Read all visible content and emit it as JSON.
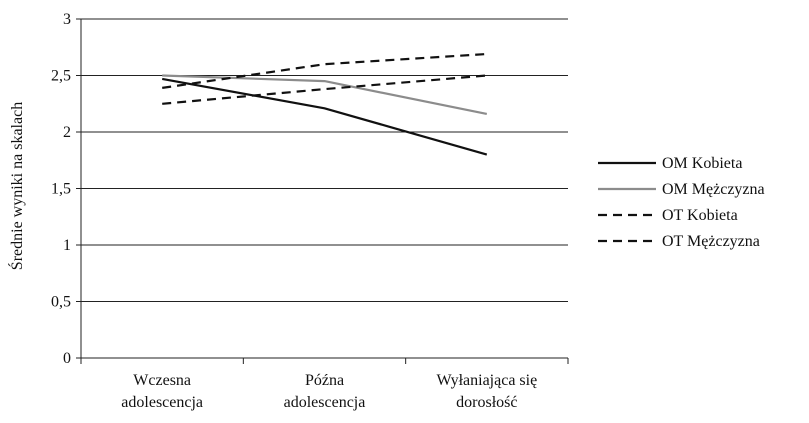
{
  "chart_data": {
    "type": "line",
    "title": "",
    "xlabel": "",
    "ylabel": "Średnie wyniki na skalach",
    "categories": [
      [
        "Wczesna",
        "adolescencja"
      ],
      [
        "Późna",
        "adolescencja"
      ],
      [
        "Wyłaniająca się",
        "dorosłość"
      ]
    ],
    "ylim": [
      0,
      3
    ],
    "yticks": [
      0,
      0.5,
      1,
      1.5,
      2,
      2.5,
      3
    ],
    "ytick_labels": [
      "0",
      "0,5",
      "1",
      "1,5",
      "2",
      "2,5",
      "3"
    ],
    "grid": true,
    "legend_position": "right",
    "series": [
      {
        "name": "OM Kobieta",
        "color": "#111111",
        "dash": "solid",
        "values": [
          2.47,
          2.21,
          1.8
        ]
      },
      {
        "name": "OM Mężczyzna",
        "color": "#8c8c8c",
        "dash": "solid",
        "values": [
          2.5,
          2.45,
          2.16
        ]
      },
      {
        "name": "OT Kobieta",
        "color": "#111111",
        "dash": "dashed",
        "values": [
          2.39,
          2.6,
          2.69
        ]
      },
      {
        "name": "OT Mężczyzna",
        "color": "#111111",
        "dash": "dashed",
        "values": [
          2.25,
          2.38,
          2.5
        ]
      }
    ]
  }
}
